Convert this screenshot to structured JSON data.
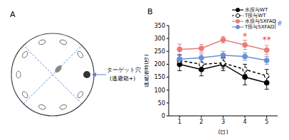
{
  "diagram": {
    "label": "A",
    "target_label": [
      "ターゲット穴",
      "(逃避箱+)"
    ]
  },
  "chart_data": {
    "type": "line",
    "title": "B",
    "x_label": "(日)",
    "y_label": "逃避潜時(秒)",
    "x": [
      1,
      2,
      3,
      4,
      5
    ],
    "xlim": [
      0.5,
      5.5
    ],
    "xticks": [
      1,
      2,
      3,
      4,
      5
    ],
    "ylim": [
      0,
      350
    ],
    "yticks": [
      0,
      50,
      100,
      150,
      200,
      250,
      300,
      350
    ],
    "grid": false,
    "legend": "upper right",
    "series": [
      {
        "name": "水投与WT",
        "color": "#000000",
        "marker": "circle",
        "line_style": "solid",
        "values": [
          200,
          180,
          200,
          150,
          128
        ],
        "errors": [
          25,
          25,
          25,
          30,
          25
        ]
      },
      {
        "name": "T投与WT",
        "color": "#000000",
        "marker": "open_circle",
        "line_style": "dashed",
        "values": [
          215,
          200,
          205,
          180,
          155
        ],
        "errors": [
          20,
          20,
          20,
          20,
          25
        ]
      },
      {
        "name": "水投与5XFAD",
        "color": "#e97b7b",
        "marker": "circle",
        "line_style": "solid",
        "values": [
          258,
          262,
          295,
          275,
          255
        ],
        "errors": [
          20,
          15,
          12,
          18,
          18
        ]
      },
      {
        "name": "T投与5XFAD",
        "color": "#6a90d6",
        "marker": "circle",
        "line_style": "solid",
        "values": [
          220,
          225,
          235,
          230,
          215
        ],
        "errors": [
          18,
          15,
          15,
          15,
          15
        ]
      }
    ],
    "annotations": [
      {
        "text": "*",
        "x": 4,
        "y": 310,
        "color": "#e8474f"
      },
      {
        "text": "**",
        "x": 5,
        "y": 295,
        "color": "#e8474f"
      },
      {
        "text": "#",
        "color": "#4a74c8"
      }
    ]
  }
}
